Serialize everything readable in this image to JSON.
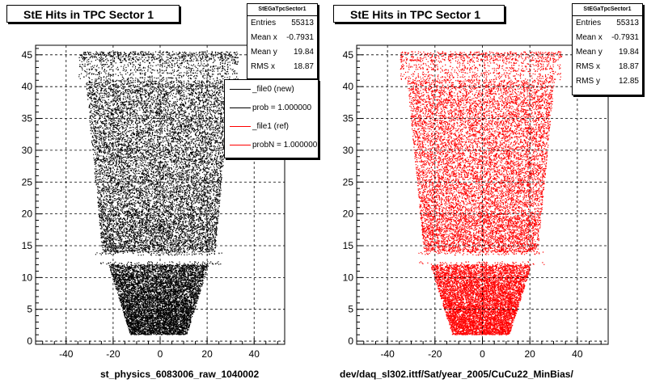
{
  "chart_data": [
    {
      "type": "scatter",
      "title": "StE Hits in TPC Sector 1",
      "xlabel": "st_physics_6083006_raw_1040002",
      "ylabel": "",
      "xlim": [
        -53,
        53
      ],
      "ylim": [
        -0.5,
        46.5
      ],
      "xticks": [
        "-40",
        "-20",
        "0",
        "20",
        "40"
      ],
      "yticks": [
        "0",
        "5",
        "10",
        "15",
        "20",
        "25",
        "30",
        "35",
        "40",
        "45"
      ],
      "grid": true,
      "marker_color": "#000000",
      "stats": {
        "name": "StEGaTpcSector1",
        "rows": [
          {
            "label": "Entries",
            "value": "55313"
          },
          {
            "label": "Mean x",
            "value": "-0.7931"
          },
          {
            "label": "Mean y",
            "value": "19.84"
          },
          {
            "label": "RMS x",
            "value": "18.87"
          }
        ]
      },
      "legend": [
        {
          "label": "_file0 (new)",
          "color": "#000000"
        },
        {
          "label": "prob = 1.000000",
          "color": "#000000"
        },
        {
          "label": "_file1 (ref)",
          "color": "#ff0000"
        },
        {
          "label": "probN = 1.000000",
          "color": "#ff0000"
        }
      ]
    },
    {
      "type": "scatter",
      "title": "StE Hits in TPC Sector 1",
      "xlabel": "dev/daq_sl302.ittf/Sat/year_2005/CuCu22_MinBias/",
      "ylabel": "",
      "xlim": [
        -53,
        53
      ],
      "ylim": [
        -0.5,
        46.5
      ],
      "xticks": [
        "-40",
        "-20",
        "0",
        "20",
        "40"
      ],
      "yticks": [
        "0",
        "5",
        "10",
        "15",
        "20",
        "25",
        "30",
        "35",
        "40",
        "45"
      ],
      "grid": true,
      "marker_color": "#ff0000",
      "stats": {
        "name": "StEGaTpcSector1",
        "rows": [
          {
            "label": "Entries",
            "value": "55313"
          },
          {
            "label": "Mean x",
            "value": "-0.7931"
          },
          {
            "label": "Mean y",
            "value": "19.84"
          },
          {
            "label": "RMS x",
            "value": "18.87"
          },
          {
            "label": "RMS y",
            "value": "12.85"
          }
        ]
      }
    }
  ]
}
